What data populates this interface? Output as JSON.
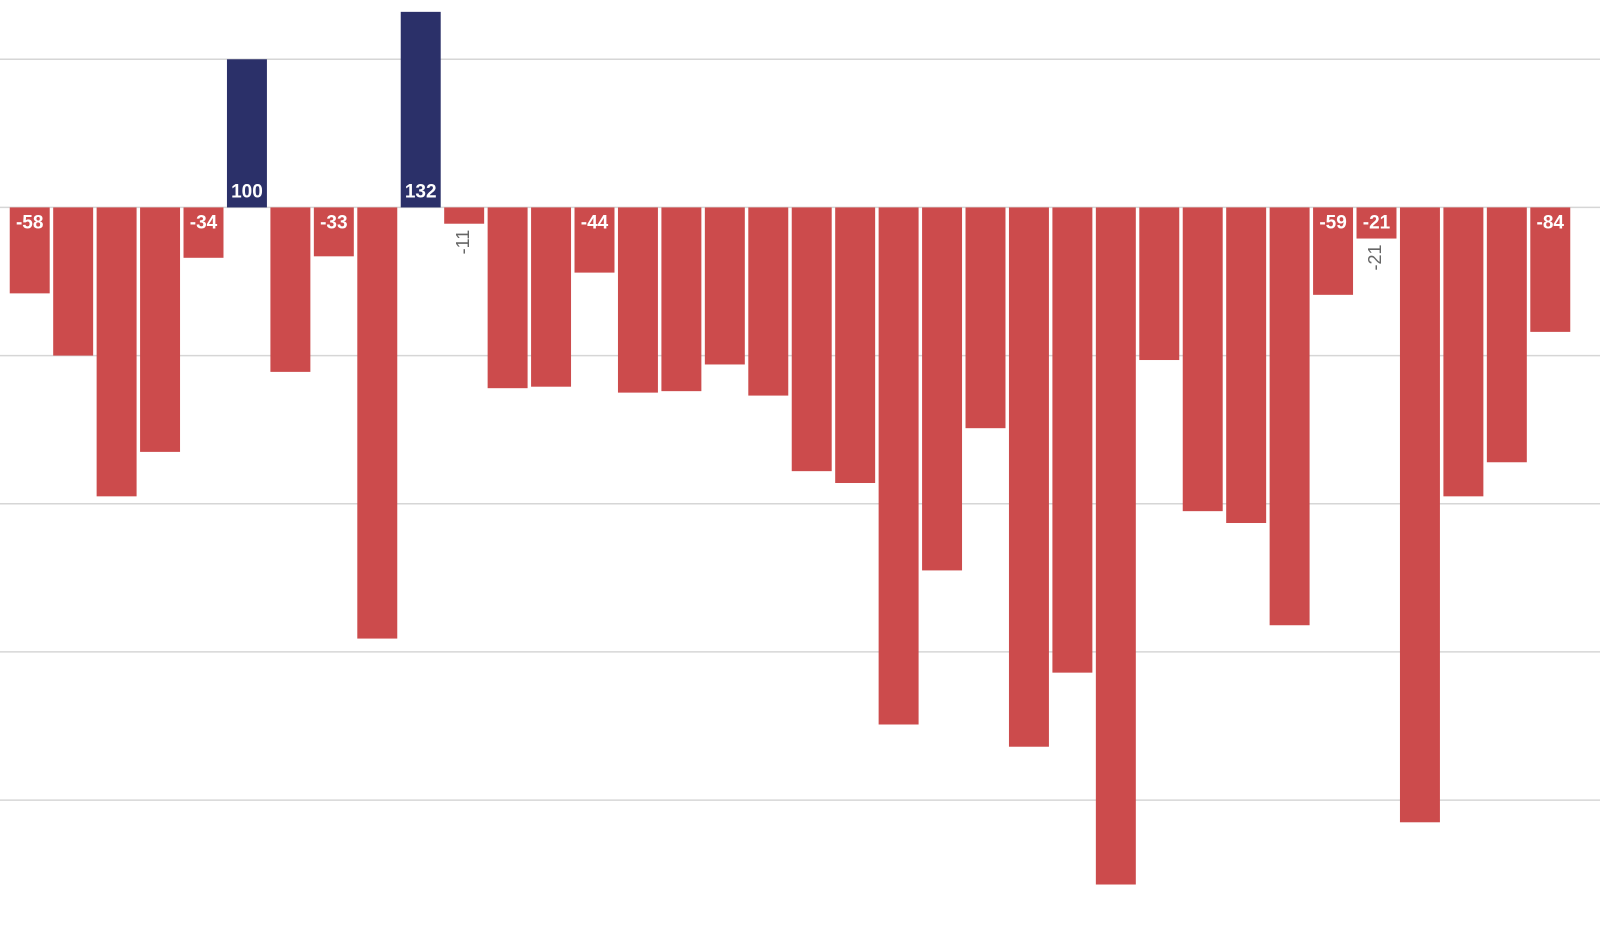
{
  "chart_data": {
    "type": "bar",
    "values": [
      -58,
      -100,
      -195,
      -165,
      -34,
      100,
      -111,
      -33,
      -291,
      132,
      -11,
      -122,
      -121,
      -44,
      -125,
      -124,
      -106,
      -127,
      -178,
      -186,
      -349,
      -245,
      -149,
      -364,
      -314,
      -457,
      -103,
      -205,
      -213,
      -282,
      -59,
      -21,
      -415,
      -195,
      -172,
      -84
    ],
    "value_labels": [
      "-58",
      null,
      null,
      null,
      "-34",
      "100",
      null,
      "-33",
      null,
      "132",
      "-11",
      null,
      null,
      "-44",
      null,
      null,
      null,
      null,
      null,
      null,
      null,
      null,
      null,
      null,
      null,
      null,
      null,
      null,
      null,
      null,
      "-59",
      "-21",
      null,
      null,
      null,
      "-84"
    ],
    "positive_color": "#2b3069",
    "negative_color": "#cc4b4c",
    "ylim": [
      -485,
      140
    ],
    "yticks": [
      100,
      0,
      -100,
      -200,
      -300,
      -400
    ],
    "grid": true
  }
}
